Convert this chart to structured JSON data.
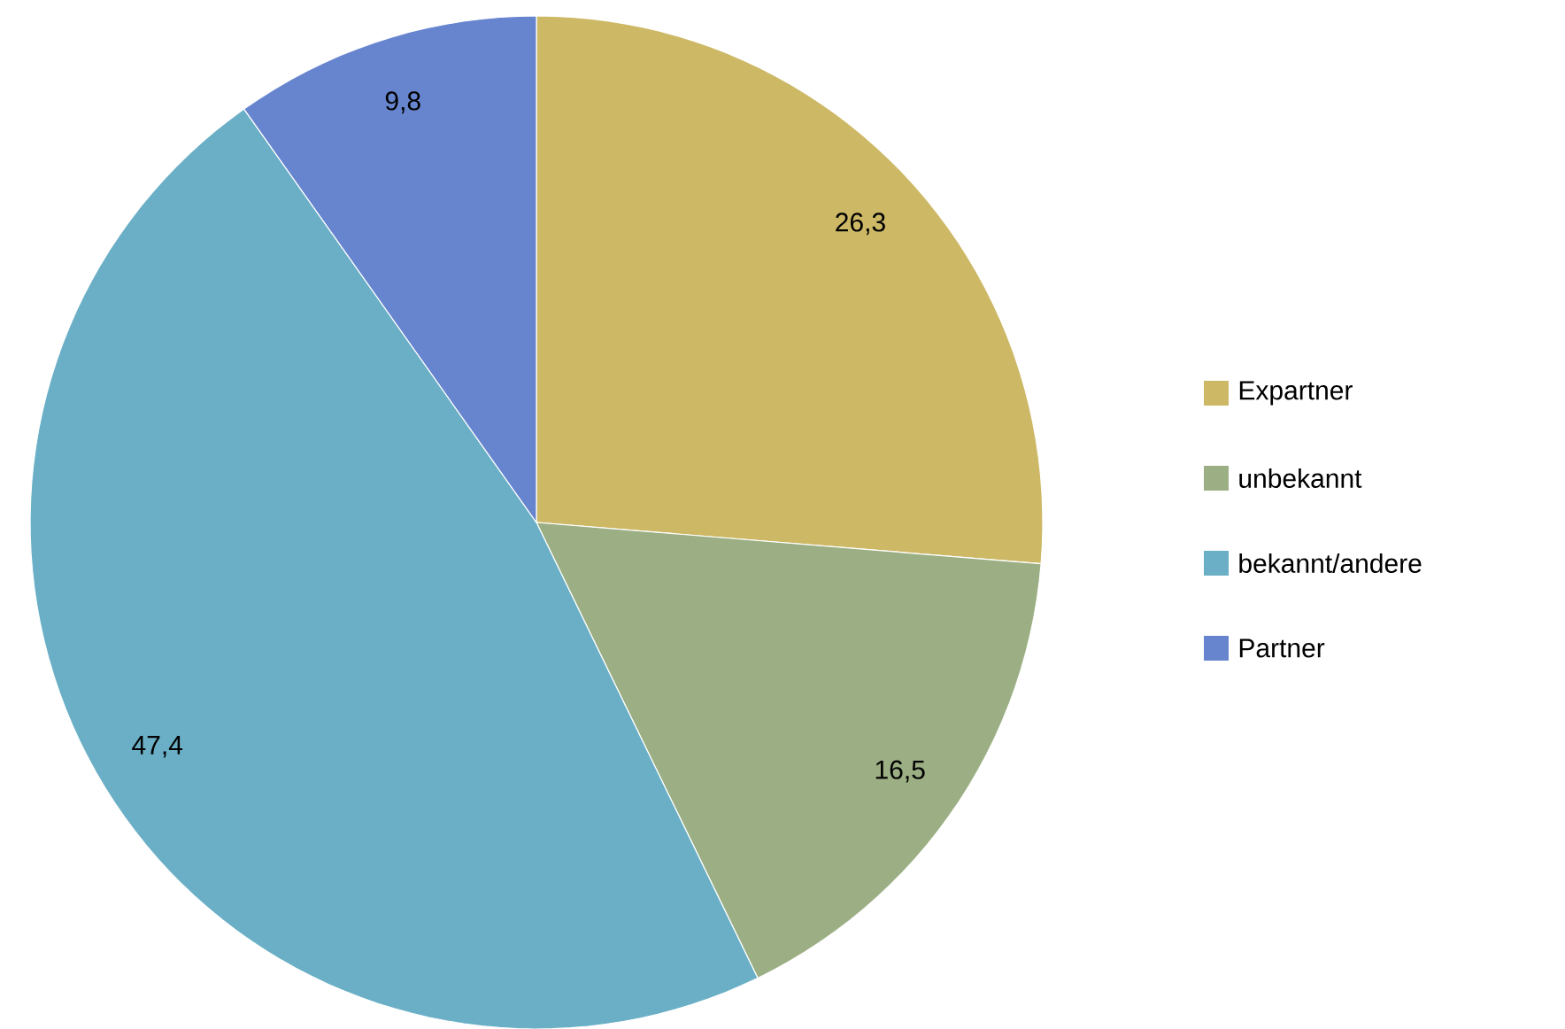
{
  "chart_data": {
    "type": "pie",
    "categories": [
      "Expartner",
      "unbekannt",
      "bekannt/andere",
      "Partner"
    ],
    "values": [
      26.3,
      16.5,
      47.4,
      9.8
    ],
    "value_labels": [
      "26,3",
      "16,5",
      "47,4",
      "9,8"
    ],
    "colors": [
      "#cdb866",
      "#9caf84",
      "#6aafc6",
      "#6785cf"
    ],
    "legend": "right"
  }
}
